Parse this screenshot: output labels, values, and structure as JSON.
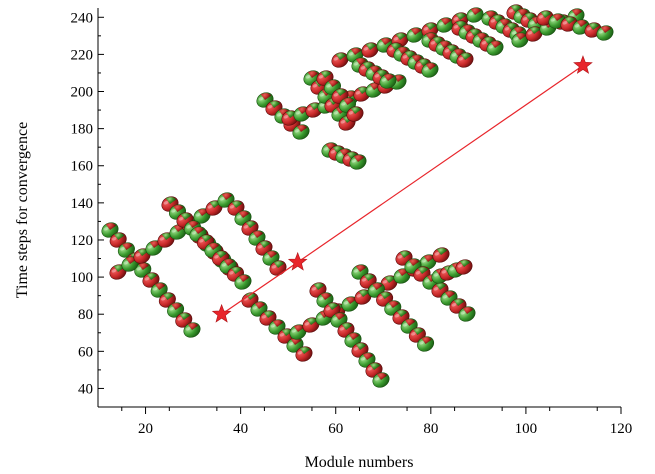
{
  "chart_data": {
    "type": "scatter",
    "title": "",
    "xlabel": "Module numbers",
    "ylabel": "Time steps for convergence",
    "xlim": [
      10,
      120
    ],
    "ylim": [
      30,
      245
    ],
    "xticks": [
      20,
      40,
      60,
      80,
      100,
      120
    ],
    "yticks": [
      40,
      60,
      80,
      100,
      120,
      140,
      160,
      180,
      200,
      220,
      240
    ],
    "grid": false,
    "legend": "none",
    "series": [
      {
        "marker": "star",
        "color": "#e8252b",
        "connected": true,
        "points": [
          {
            "x": 36,
            "y": 80
          },
          {
            "x": 52,
            "y": 108
          },
          {
            "x": 112,
            "y": 214
          }
        ]
      }
    ],
    "illustrations": [
      {
        "desc": "modular robot cluster near first point",
        "color_a": "#c62828",
        "color_b": "#3a9a2e"
      },
      {
        "desc": "modular robot cluster near second point",
        "color_a": "#c62828",
        "color_b": "#3a9a2e"
      },
      {
        "desc": "modular robot cluster near third point",
        "color_a": "#c62828",
        "color_b": "#3a9a2e"
      }
    ]
  }
}
